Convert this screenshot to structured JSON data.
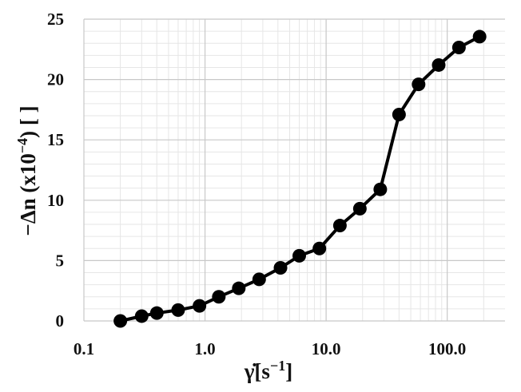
{
  "chart_data": {
    "type": "line",
    "x_scale": "log",
    "xlim": [
      0.1,
      300
    ],
    "ylim": [
      0,
      25
    ],
    "x_ticks": [
      0.1,
      1.0,
      10.0,
      100.0
    ],
    "x_tick_labels": [
      "0.1",
      "1.0",
      "10.0",
      "100.0"
    ],
    "y_ticks": [
      0,
      5,
      10,
      15,
      20,
      25
    ],
    "y_tick_labels": [
      "0",
      "5",
      "10",
      "15",
      "20",
      "25"
    ],
    "xlabel": {
      "main": "γ̇[s",
      "sup": "−1",
      "tail": "]"
    },
    "ylabel": {
      "main": "−Δn (x10",
      "sup": "−4",
      "tail": ") [ ]"
    },
    "grid": {
      "major": true,
      "minor": true
    },
    "legend": "none",
    "series": [
      {
        "color": "#000000",
        "marker": "circle",
        "x": [
          0.2,
          0.3,
          0.4,
          0.6,
          0.9,
          1.3,
          1.9,
          2.8,
          4.2,
          6.0,
          8.8,
          13.0,
          19.0,
          28.0,
          40.0,
          58.0,
          85.0,
          125.0,
          185.0
        ],
        "y": [
          0.0,
          0.4,
          0.65,
          0.9,
          1.25,
          2.0,
          2.7,
          3.45,
          4.4,
          5.4,
          6.0,
          7.9,
          9.3,
          10.9,
          17.1,
          19.6,
          21.2,
          22.65,
          23.55
        ]
      }
    ]
  }
}
